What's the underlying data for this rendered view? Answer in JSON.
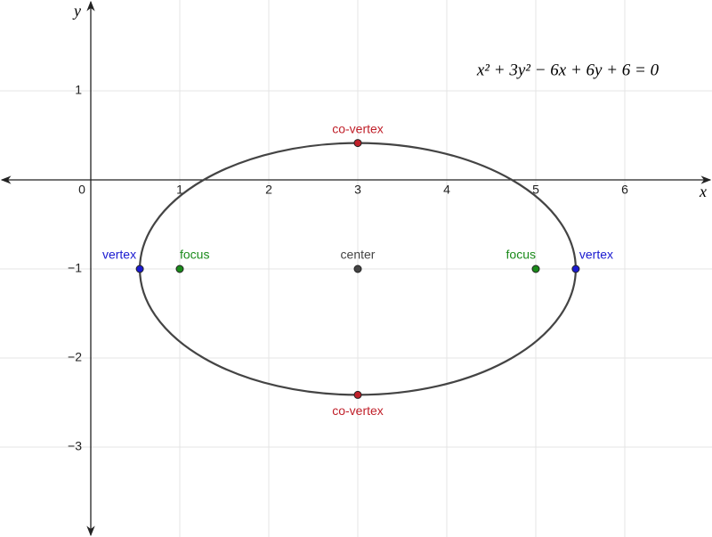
{
  "chart_data": {
    "type": "ellipse-plot",
    "equation": "x² + 3y² − 6x + 6y + 6 = 0",
    "x_label": "x",
    "y_label": "y",
    "xlim": [
      -1.02,
      6.98
    ],
    "ylim": [
      -4.01,
      2.02
    ],
    "xticks": [
      0,
      1,
      2,
      3,
      4,
      5,
      6
    ],
    "yticks": [
      1,
      {
        "value": -1,
        "label": "−1"
      },
      {
        "value": -2,
        "label": "−2"
      },
      {
        "value": -3,
        "label": "−3"
      }
    ],
    "grid": true,
    "ellipse": {
      "center": [
        3,
        -1
      ],
      "rx": 2.449,
      "ry": 1.414,
      "color": "#444444"
    },
    "points": [
      {
        "label": "co-vertex",
        "x": 3,
        "y": 0.414,
        "color": "#c0202a"
      },
      {
        "label": "co-vertex",
        "x": 3,
        "y": -2.414,
        "color": "#c0202a"
      },
      {
        "label": "vertex",
        "x": 0.551,
        "y": -1,
        "color": "#1a1ad0"
      },
      {
        "label": "vertex",
        "x": 5.449,
        "y": -1,
        "color": "#1a1ad0"
      },
      {
        "label": "focus",
        "x": 1,
        "y": -1,
        "color": "#1a8a1a"
      },
      {
        "label": "focus",
        "x": 5,
        "y": -1,
        "color": "#1a8a1a"
      },
      {
        "label": "center",
        "x": 3,
        "y": -1,
        "color": "#444444"
      }
    ]
  }
}
